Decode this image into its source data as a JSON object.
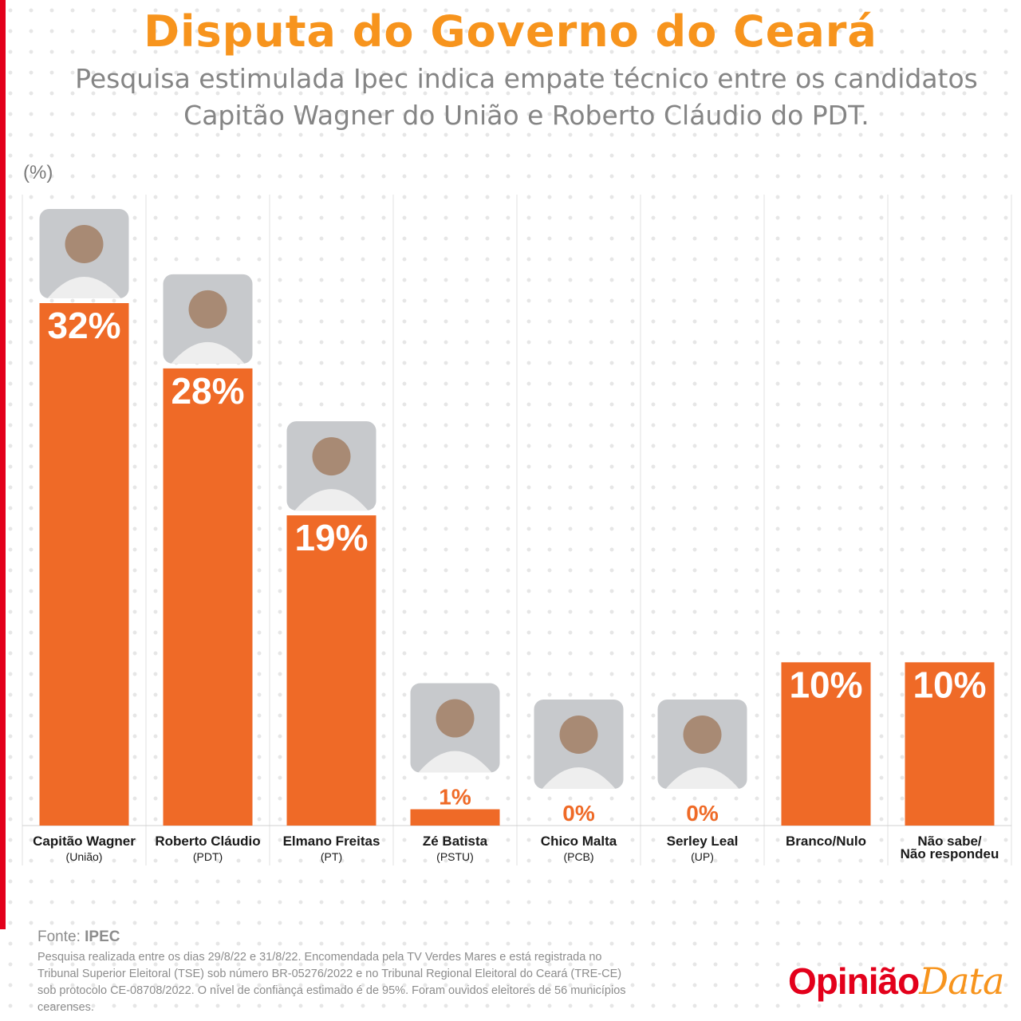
{
  "header": {
    "title": "Disputa do Governo do Ceará",
    "subtitle_line1": "Pesquisa estimulada Ipec indica empate técnico entre os candidatos",
    "subtitle_line2": "Capitão Wagner do União e Roberto Cláudio do PDT.",
    "unit_label": "(%)"
  },
  "colors": {
    "bar": "#ef6a27",
    "title": "#f7941d",
    "accent": "#e3001b",
    "value_dark": "#ef6a27",
    "value_light": "#ffffff"
  },
  "chart_data": {
    "type": "bar",
    "ylabel": "(%)",
    "ylim": [
      0,
      32
    ],
    "categories": [
      "Capitão Wagner",
      "Roberto Cláudio",
      "Elmano Freitas",
      "Zé Batista",
      "Chico Malta",
      "Serley Leal",
      "Branco/Nulo",
      "Não sabe/ Não respondeu"
    ],
    "parties": [
      "(União)",
      "(PDT)",
      "(PT)",
      "(PSTU)",
      "(PCB)",
      "(UP)",
      "",
      ""
    ],
    "values": [
      32,
      28,
      19,
      1,
      0,
      0,
      10,
      10
    ],
    "value_labels": [
      "32%",
      "28%",
      "19%",
      "1%",
      "0%",
      "0%",
      "10%",
      "10%"
    ],
    "has_photo": [
      true,
      true,
      true,
      true,
      true,
      true,
      false,
      false
    ]
  },
  "footer": {
    "source_label": "Fonte:",
    "source_value": "IPEC",
    "note_line1": "Pesquisa realizada entre os dias 29/8/22 e 31/8/22. Encomendada pela TV Verdes Mares e está registrada no",
    "note_line2": "Tribunal Superior Eleitoral (TSE) sob número BR-05276/2022 e no Tribunal Regional Eleitoral do Ceará (TRE-CE)",
    "note_line3": "sob protocolo CE-08708/2022. O nível de confiança estimado é de 95%. Foram ouvidos eleitores de 56 municípios cearenses."
  },
  "logo": {
    "part1": "Opinião",
    "part2": "Data"
  }
}
